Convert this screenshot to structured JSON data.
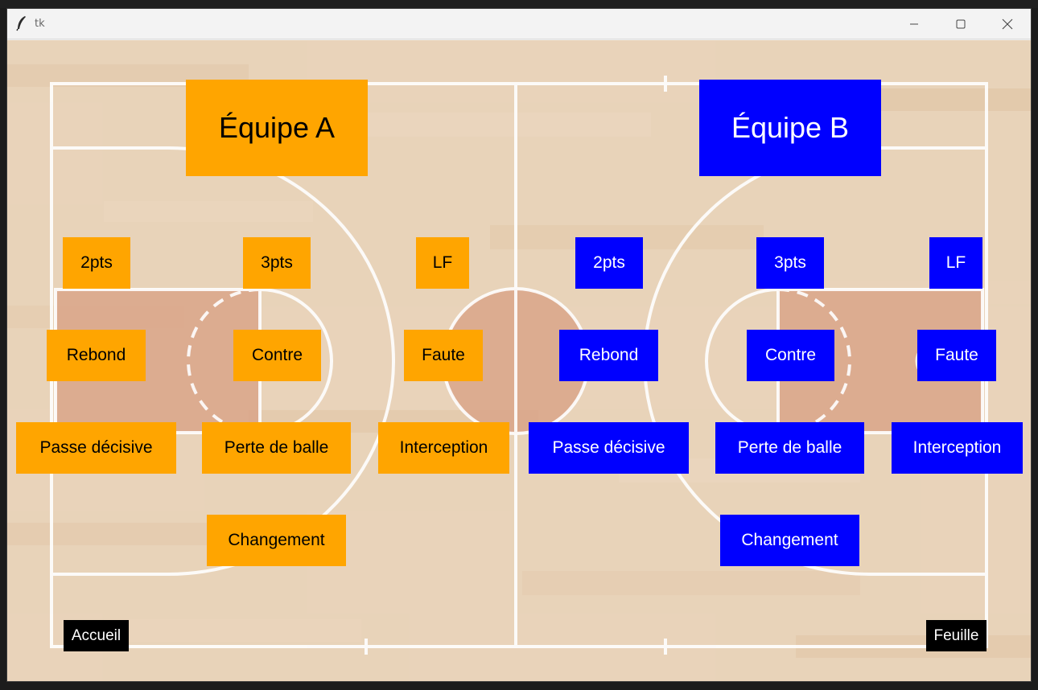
{
  "window": {
    "title": "tk"
  },
  "team_a": {
    "title": "Équipe A",
    "color": "#ffa500",
    "buttons": {
      "two_pts": "2pts",
      "three_pts": "3pts",
      "free_throw": "LF",
      "rebound": "Rebond",
      "block": "Contre",
      "foul": "Faute",
      "assist": "Passe décisive",
      "turnover": "Perte de balle",
      "steal": "Interception",
      "substitution": "Changement"
    }
  },
  "team_b": {
    "title": "Équipe B",
    "color": "#0000ff",
    "buttons": {
      "two_pts": "2pts",
      "three_pts": "3pts",
      "free_throw": "LF",
      "rebound": "Rebond",
      "block": "Contre",
      "foul": "Faute",
      "assist": "Passe décisive",
      "turnover": "Perte de balle",
      "steal": "Interception",
      "substitution": "Changement"
    }
  },
  "nav": {
    "home": "Accueil",
    "sheet": "Feuille"
  },
  "icons": {
    "app": "feather-icon",
    "minimize": "minimize-icon",
    "maximize": "maximize-icon",
    "close": "close-icon"
  },
  "colors": {
    "court_floor": "#e8d2b8",
    "court_paint": "#d9a488",
    "court_lines": "#ffffff",
    "nav_bg": "#000000"
  }
}
